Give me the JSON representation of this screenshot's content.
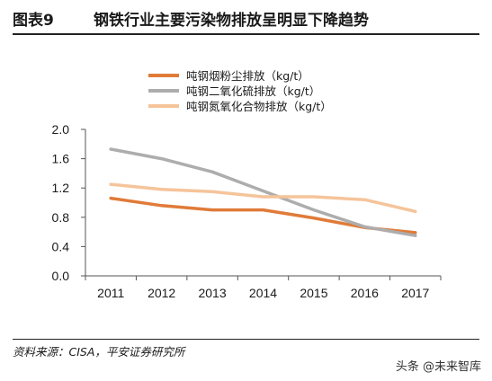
{
  "header": {
    "figure_no": "图表9",
    "title": "钢铁行业主要污染物排放呈明显下降趋势"
  },
  "source": "资料来源：CISA，平安证券研究所",
  "watermark": "头条 @未来智库",
  "chart_data": {
    "type": "line",
    "x": [
      "2011",
      "2012",
      "2013",
      "2014",
      "2015",
      "2016",
      "2017"
    ],
    "ylim": [
      0.0,
      2.0
    ],
    "yticks": [
      "0.0",
      "0.4",
      "0.8",
      "1.2",
      "1.6",
      "2.0"
    ],
    "grid": false,
    "legend_position": "top-center",
    "series": [
      {
        "name": "吨钢烟粉尘排放（kg/t）",
        "color": "#E07B39",
        "values": [
          1.06,
          0.96,
          0.9,
          0.9,
          0.79,
          0.66,
          0.59
        ]
      },
      {
        "name": "吨钢二氧化硫排放（kg/t）",
        "color": "#ADADAD",
        "values": [
          1.73,
          1.6,
          1.42,
          1.16,
          0.9,
          0.67,
          0.55
        ]
      },
      {
        "name": "吨钢氮氧化合物排放（kg/t）",
        "color": "#F5C49A",
        "values": [
          1.25,
          1.18,
          1.15,
          1.08,
          1.08,
          1.04,
          0.88
        ]
      }
    ]
  }
}
